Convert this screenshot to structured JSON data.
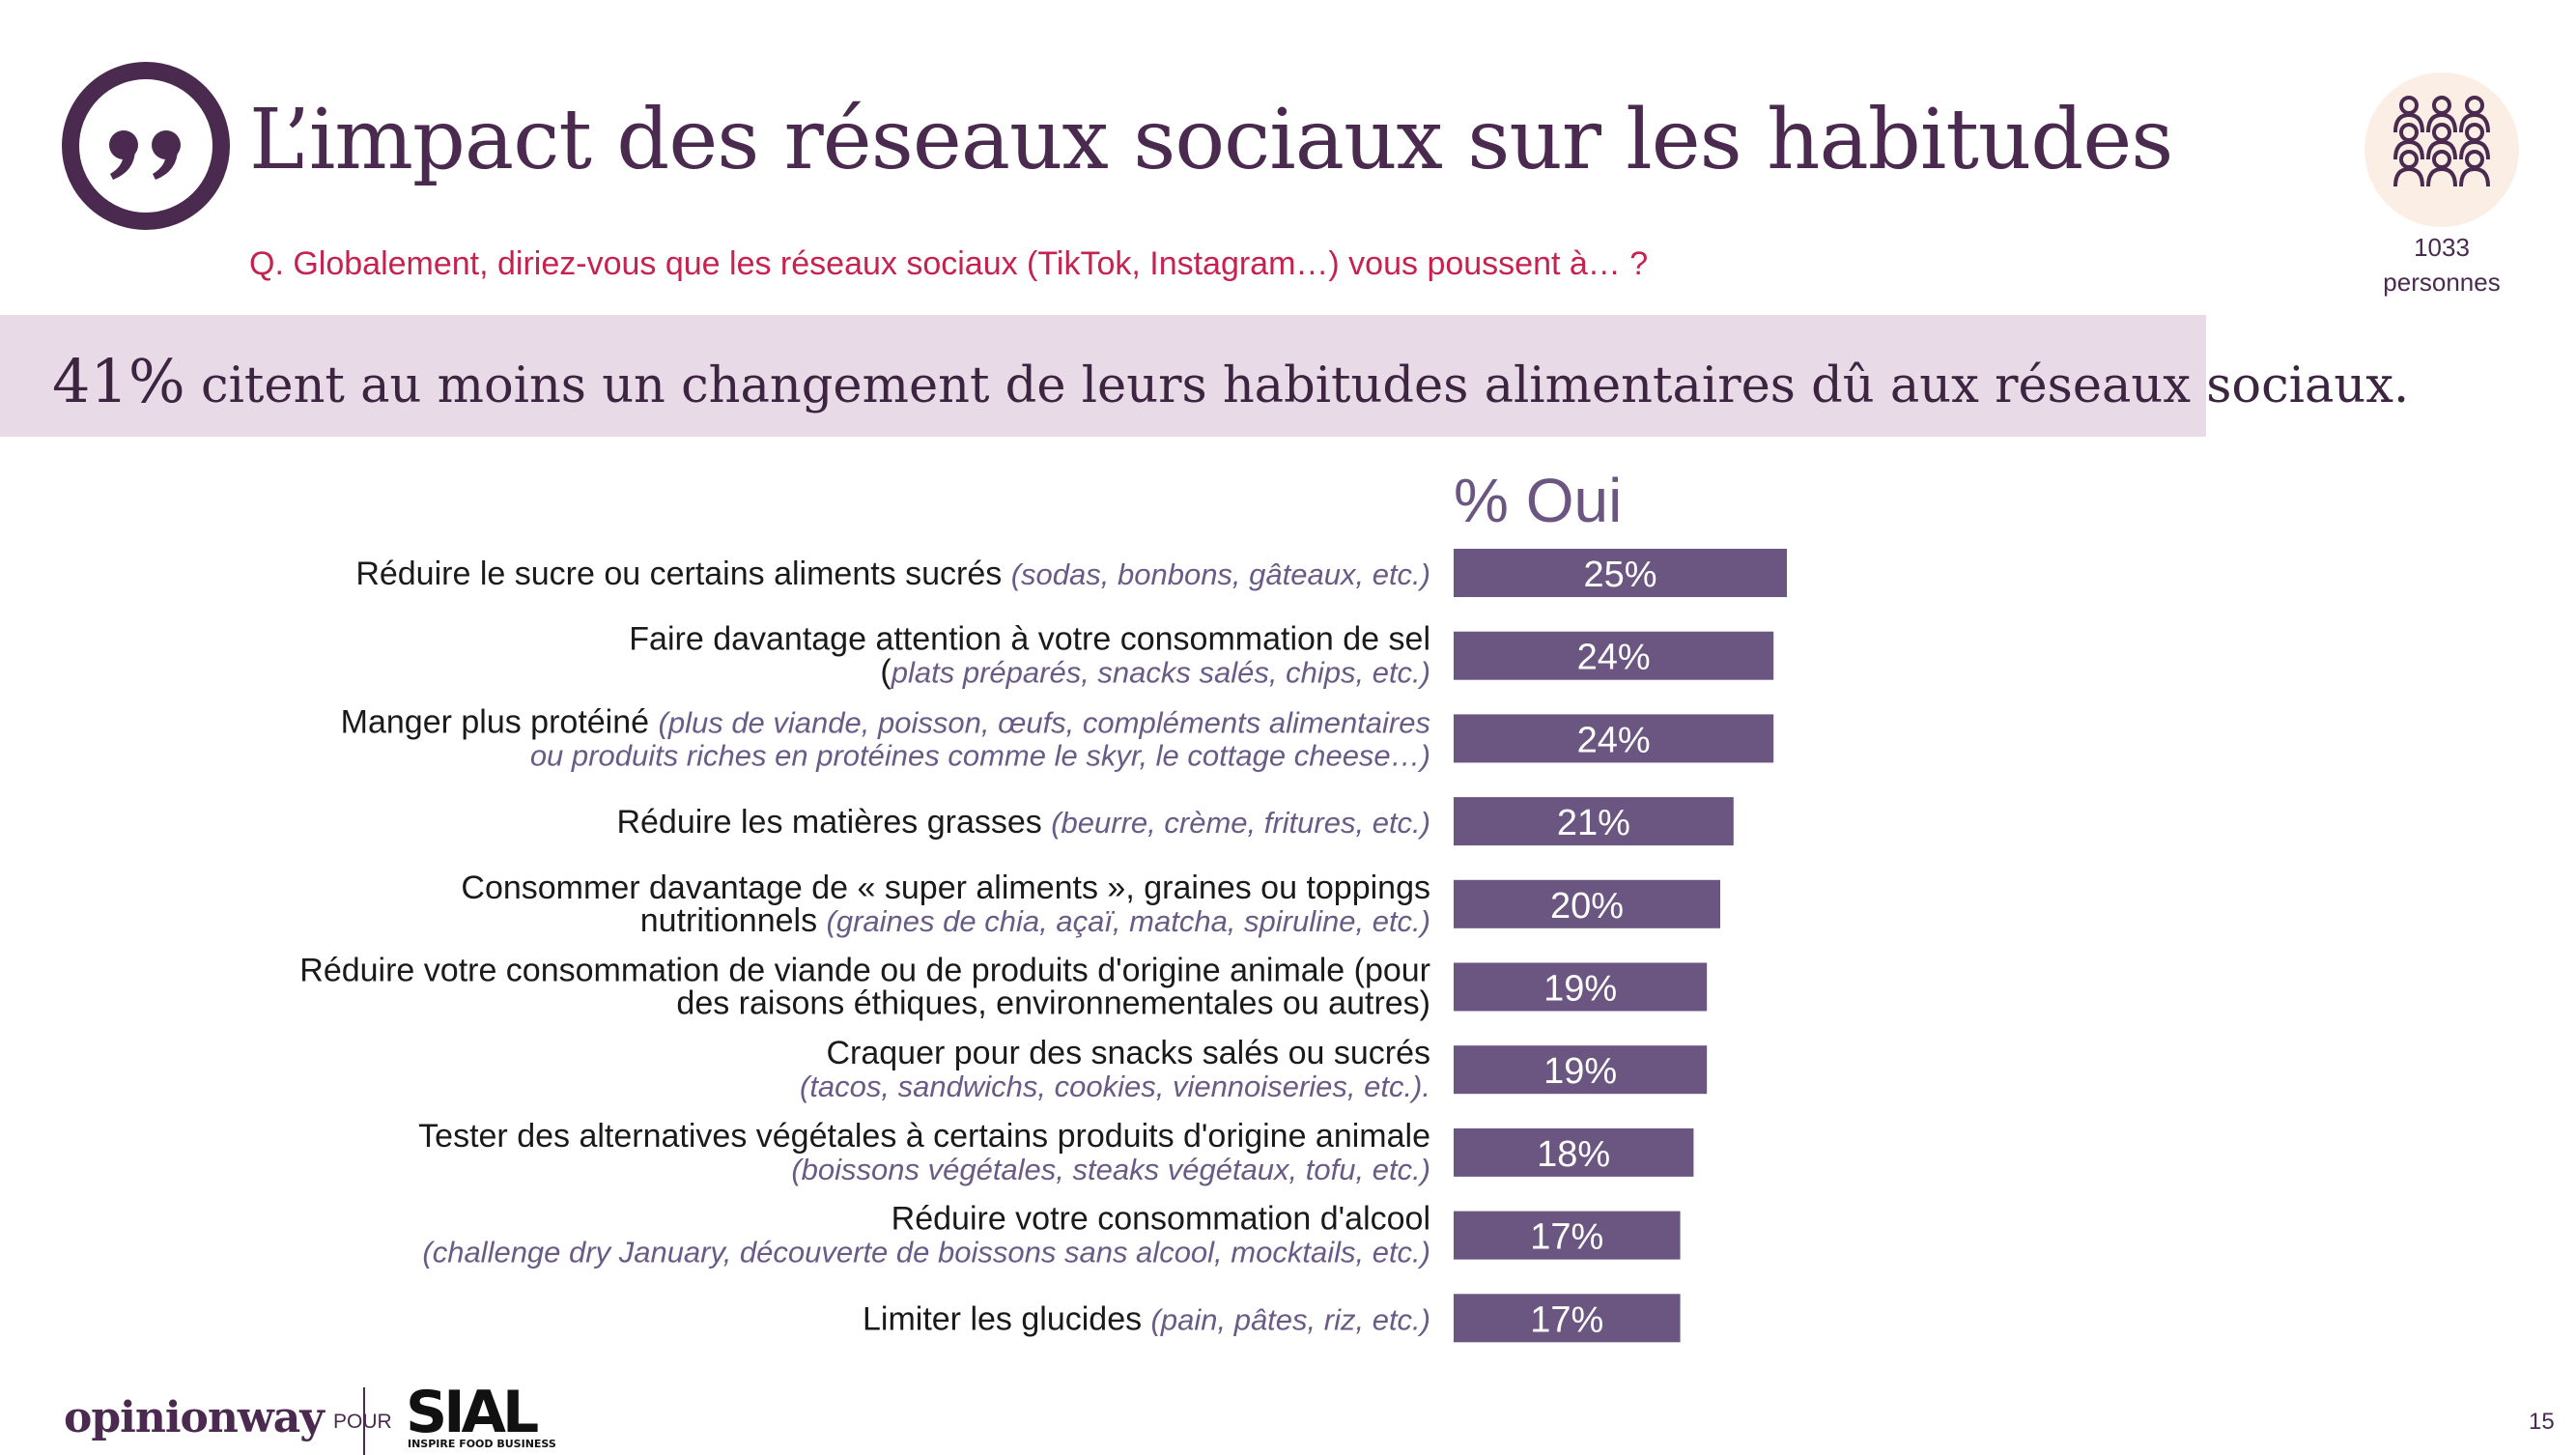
{
  "title": "L’impact des réseaux sociaux sur les habitudes",
  "question": "Q. Globalement, diriez-vous que les réseaux sociaux (TikTok, Instagram…) vous poussent à… ?",
  "sample": {
    "count": "1033",
    "unit": "personnes"
  },
  "highlight": {
    "pct": "41%",
    "text": " citent au moins un changement de leurs habitudes alimentaires dû aux réseaux sociaux."
  },
  "footer": {
    "brand": "opinionway",
    "pour": "POUR",
    "partner": "SIAL",
    "partner_tagline": "INSPIRE FOOD BUSINESS",
    "page": "15"
  },
  "colors": {
    "bar": "#6b5581",
    "title": "#4a2a4f",
    "question": "#c6224f",
    "band": "#e8dbe7"
  },
  "chart_data": {
    "type": "bar",
    "orientation": "horizontal",
    "series": [
      {
        "name": "% Oui",
        "values": [
          25,
          24,
          24,
          21,
          20,
          19,
          19,
          18,
          17,
          17
        ]
      }
    ],
    "categories": [
      {
        "l1": "Réduire le sucre ou certains aliments sucrés ",
        "l1_ex": "(sodas, bonbons, gâteaux, etc.)",
        "l2": "",
        "l2_ex": ""
      },
      {
        "l1": "Faire davantage attention à votre consommation de sel",
        "l1_ex": "",
        "l2": "(",
        "l2_ex": "plats préparés, snacks salés, chips, etc.)"
      },
      {
        "l1": "Manger plus protéiné ",
        "l1_ex": "(plus de viande, poisson, œufs, compléments alimentaires",
        "l2": "",
        "l2_ex": "ou produits riches en protéines comme le skyr, le cottage cheese…)"
      },
      {
        "l1": "Réduire les matières grasses ",
        "l1_ex": "(beurre, crème, fritures, etc.)",
        "l2": "",
        "l2_ex": ""
      },
      {
        "l1": "Consommer davantage de « super aliments », graines ou toppings",
        "l1_ex": "",
        "l2": "nutritionnels ",
        "l2_ex": "(graines de chia, açaï, matcha, spiruline, etc.)"
      },
      {
        "l1": "Réduire votre consommation de viande ou de produits d'origine animale (pour",
        "l1_ex": "",
        "l2": "des raisons éthiques, environnementales ou autres)",
        "l2_ex": ""
      },
      {
        "l1": "Craquer pour des snacks salés ou sucrés",
        "l1_ex": "",
        "l2": "",
        "l2_ex": "(tacos, sandwichs, cookies, viennoiseries, etc.)."
      },
      {
        "l1": "Tester des alternatives végétales à certains produits d'origine animale",
        "l1_ex": "",
        "l2": "",
        "l2_ex": "(boissons végétales, steaks végétaux, tofu, etc.)"
      },
      {
        "l1": "Réduire votre consommation d'alcool",
        "l1_ex": "",
        "l2": "",
        "l2_ex": "(challenge dry January, découverte de boissons sans alcool, mocktails, etc.)"
      },
      {
        "l1": "Limiter les glucides ",
        "l1_ex": "(pain, pâtes, riz, etc.)",
        "l2": "",
        "l2_ex": ""
      }
    ],
    "data_labels": [
      "25%",
      "24%",
      "24%",
      "21%",
      "20%",
      "19%",
      "19%",
      "18%",
      "17%",
      "17%"
    ],
    "xlim": [
      0,
      100
    ],
    "legend": "none",
    "grid": false
  }
}
